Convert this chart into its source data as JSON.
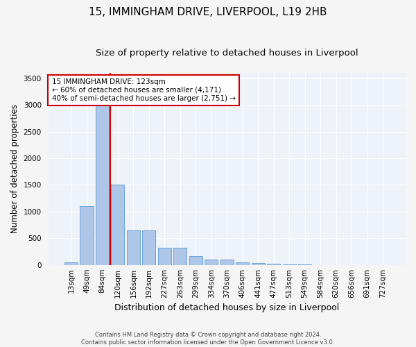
{
  "title": "15, IMMINGHAM DRIVE, LIVERPOOL, L19 2HB",
  "subtitle": "Size of property relative to detached houses in Liverpool",
  "xlabel": "Distribution of detached houses by size in Liverpool",
  "ylabel": "Number of detached properties",
  "categories": [
    "13sqm",
    "49sqm",
    "84sqm",
    "120sqm",
    "156sqm",
    "192sqm",
    "227sqm",
    "263sqm",
    "299sqm",
    "334sqm",
    "370sqm",
    "406sqm",
    "441sqm",
    "477sqm",
    "513sqm",
    "549sqm",
    "584sqm",
    "620sqm",
    "656sqm",
    "691sqm",
    "727sqm"
  ],
  "values": [
    50,
    1100,
    3050,
    1500,
    650,
    650,
    320,
    320,
    160,
    100,
    100,
    50,
    30,
    20,
    5,
    3,
    2,
    1,
    0,
    0,
    0
  ],
  "bar_color": "#aec6e8",
  "bar_edge_color": "#5b9bd5",
  "property_line_x": 2.5,
  "property_line_color": "#cc0000",
  "annotation_text": "15 IMMINGHAM DRIVE: 123sqm\n← 60% of detached houses are smaller (4,171)\n40% of semi-detached houses are larger (2,751) →",
  "annotation_box_color": "#cc0000",
  "ylim": [
    0,
    3600
  ],
  "yticks": [
    0,
    500,
    1000,
    1500,
    2000,
    2500,
    3000,
    3500
  ],
  "footnote": "Contains HM Land Registry data © Crown copyright and database right 2024.\nContains public sector information licensed under the Open Government Licence v3.0.",
  "bg_color": "#eef2f9",
  "grid_color": "#ffffff",
  "title_fontsize": 11,
  "subtitle_fontsize": 9.5,
  "tick_fontsize": 7.5,
  "ylabel_fontsize": 8.5,
  "xlabel_fontsize": 9
}
